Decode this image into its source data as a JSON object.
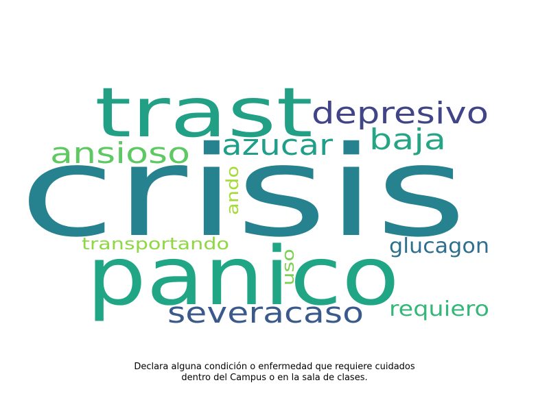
{
  "word_cloud": {
    "words": [
      {
        "id": "crisis",
        "text": "crisis",
        "color": "#26828e"
      },
      {
        "id": "trast",
        "text": "trast",
        "color": "#22a085"
      },
      {
        "id": "panico",
        "text": "panico",
        "color": "#21a685"
      },
      {
        "id": "depresivo",
        "text": "depresivo",
        "color": "#414487"
      },
      {
        "id": "azucar",
        "text": "azucar",
        "color": "#1f9e89"
      },
      {
        "id": "baja",
        "text": "baja",
        "color": "#25a584"
      },
      {
        "id": "ansioso",
        "text": "ansioso",
        "color": "#5ec962"
      },
      {
        "id": "severacaso",
        "text": "severacaso",
        "color": "#3b5a8c"
      },
      {
        "id": "glucagon",
        "text": "glucagon",
        "color": "#2e6f8e"
      },
      {
        "id": "requiero",
        "text": "requiero",
        "color": "#35b779"
      },
      {
        "id": "transportando",
        "text": "transportando",
        "color": "#8fd744"
      },
      {
        "id": "ando",
        "text": "ando",
        "color": "#a5db36"
      },
      {
        "id": "uso",
        "text": "uso",
        "color": "#7ad151"
      }
    ]
  },
  "caption": {
    "line1": "Declara alguna condición o enfermedad que requiere cuidados",
    "line2": "dentro del Campus o en la sala de clases."
  }
}
